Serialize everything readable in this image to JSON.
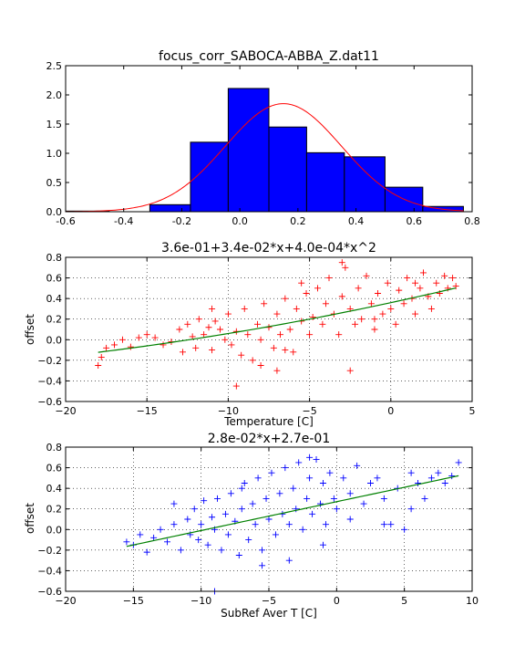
{
  "chart_data": [
    {
      "type": "bar",
      "title": "focus_corr_SABOCA-ABBA_Z.dat11",
      "xlabel": "",
      "ylabel": "",
      "xlim": [
        -0.6,
        0.8
      ],
      "ylim": [
        0.0,
        2.5
      ],
      "xticks": [
        "-0.6",
        "-0.4",
        "-0.2",
        "0.0",
        "0.2",
        "0.4",
        "0.6",
        "0.8"
      ],
      "yticks": [
        "0.0",
        "0.5",
        "1.0",
        "1.5",
        "2.0",
        "2.5"
      ],
      "grid": false,
      "bar_color": "#0000ff",
      "bins": [
        {
          "x0": -0.6,
          "x1": -0.45,
          "value": 0.01
        },
        {
          "x0": -0.45,
          "x1": -0.31,
          "value": 0.0
        },
        {
          "x0": -0.31,
          "x1": -0.17,
          "value": 0.12
        },
        {
          "x0": -0.17,
          "x1": -0.04,
          "value": 1.19
        },
        {
          "x0": -0.04,
          "x1": 0.1,
          "value": 2.11
        },
        {
          "x0": 0.1,
          "x1": 0.23,
          "value": 1.45
        },
        {
          "x0": 0.23,
          "x1": 0.36,
          "value": 1.01
        },
        {
          "x0": 0.36,
          "x1": 0.5,
          "value": 0.94
        },
        {
          "x0": 0.5,
          "x1": 0.63,
          "value": 0.42
        },
        {
          "x0": 0.63,
          "x1": 0.77,
          "value": 0.09
        }
      ],
      "fit_curve": {
        "type": "gaussian",
        "amplitude": 1.85,
        "mean": 0.15,
        "sigma": 0.2,
        "color": "#ff0000"
      }
    },
    {
      "type": "scatter",
      "title": "3.6e-01+3.4e-02*x+4.0e-04*x^2",
      "xlabel": "Temperature [C]",
      "ylabel": "offset",
      "xlim": [
        -20,
        5
      ],
      "ylim": [
        -0.6,
        0.8
      ],
      "xticks": [
        "−20",
        "−15",
        "−10",
        "−5",
        "0",
        "5"
      ],
      "yticks": [
        "−0.6",
        "−0.4",
        "−0.2",
        "0.0",
        "0.2",
        "0.4",
        "0.6",
        "0.8"
      ],
      "grid": true,
      "marker": "+",
      "point_color": "#ff0000",
      "fit_color": "#008000",
      "fit": {
        "type": "polynomial",
        "coefficients": [
          0.36,
          0.034,
          0.0004
        ],
        "x_range": [
          -18,
          4
        ]
      },
      "points": [
        [
          -18.0,
          -0.25
        ],
        [
          -17.8,
          -0.17
        ],
        [
          -17.5,
          -0.08
        ],
        [
          -17.0,
          -0.05
        ],
        [
          -16.5,
          0.0
        ],
        [
          -16.0,
          -0.07
        ],
        [
          -15.5,
          0.02
        ],
        [
          -15.0,
          0.05
        ],
        [
          -14.5,
          0.02
        ],
        [
          -14.0,
          -0.05
        ],
        [
          -13.5,
          -0.02
        ],
        [
          -13.0,
          0.1
        ],
        [
          -12.8,
          -0.12
        ],
        [
          -12.5,
          0.15
        ],
        [
          -12.2,
          0.03
        ],
        [
          -12.0,
          -0.08
        ],
        [
          -11.8,
          0.2
        ],
        [
          -11.5,
          0.05
        ],
        [
          -11.2,
          0.12
        ],
        [
          -11.0,
          -0.1
        ],
        [
          -10.8,
          0.18
        ],
        [
          -10.5,
          0.1
        ],
        [
          -10.2,
          0.0
        ],
        [
          -10.0,
          0.25
        ],
        [
          -9.8,
          -0.05
        ],
        [
          -9.5,
          0.08
        ],
        [
          -9.2,
          -0.15
        ],
        [
          -9.0,
          0.3
        ],
        [
          -8.8,
          0.05
        ],
        [
          -8.5,
          -0.2
        ],
        [
          -8.2,
          0.15
        ],
        [
          -8.0,
          0.0
        ],
        [
          -7.8,
          0.35
        ],
        [
          -7.5,
          0.12
        ],
        [
          -7.2,
          -0.08
        ],
        [
          -7.0,
          0.25
        ],
        [
          -6.8,
          0.05
        ],
        [
          -6.5,
          0.4
        ],
        [
          -6.2,
          0.1
        ],
        [
          -6.0,
          -0.12
        ],
        [
          -5.8,
          0.3
        ],
        [
          -5.5,
          0.18
        ],
        [
          -5.2,
          0.45
        ],
        [
          -5.0,
          0.05
        ],
        [
          -4.8,
          0.22
        ],
        [
          -4.5,
          0.5
        ],
        [
          -4.2,
          0.15
        ],
        [
          -4.0,
          0.35
        ],
        [
          -3.8,
          0.6
        ],
        [
          -3.5,
          0.25
        ],
        [
          -3.2,
          0.05
        ],
        [
          -3.0,
          0.42
        ],
        [
          -2.8,
          0.7
        ],
        [
          -2.5,
          0.3
        ],
        [
          -2.2,
          0.15
        ],
        [
          -2.0,
          0.5
        ],
        [
          -1.8,
          0.2
        ],
        [
          -1.5,
          0.62
        ],
        [
          -1.2,
          0.35
        ],
        [
          -1.0,
          0.1
        ],
        [
          -0.8,
          0.45
        ],
        [
          -0.5,
          0.25
        ],
        [
          -0.2,
          0.55
        ],
        [
          0.0,
          0.3
        ],
        [
          0.3,
          0.15
        ],
        [
          0.5,
          0.48
        ],
        [
          0.8,
          0.35
        ],
        [
          1.0,
          0.6
        ],
        [
          1.3,
          0.4
        ],
        [
          1.5,
          0.25
        ],
        [
          1.8,
          0.5
        ],
        [
          2.0,
          0.65
        ],
        [
          2.3,
          0.42
        ],
        [
          2.5,
          0.3
        ],
        [
          2.8,
          0.55
        ],
        [
          3.0,
          0.45
        ],
        [
          3.3,
          0.62
        ],
        [
          3.5,
          0.5
        ],
        [
          3.8,
          0.6
        ],
        [
          4.0,
          0.52
        ],
        [
          -9.5,
          -0.45
        ],
        [
          -7.0,
          -0.3
        ],
        [
          -2.5,
          -0.3
        ],
        [
          -8.0,
          -0.25
        ],
        [
          -6.5,
          -0.1
        ],
        [
          -11.0,
          0.3
        ],
        [
          -5.5,
          0.55
        ],
        [
          -3.0,
          0.75
        ],
        [
          -1.0,
          0.2
        ],
        [
          1.5,
          0.55
        ]
      ]
    },
    {
      "type": "scatter",
      "title": "2.8e-02*x+2.7e-01",
      "xlabel": "SubRef Aver T [C]",
      "ylabel": "offset",
      "xlim": [
        -20,
        10
      ],
      "ylim": [
        -0.6,
        0.8
      ],
      "xticks": [
        "−20",
        "−15",
        "−10",
        "−5",
        "0",
        "5",
        "10"
      ],
      "yticks": [
        "−0.6",
        "−0.4",
        "−0.2",
        "0.0",
        "0.2",
        "0.4",
        "0.6",
        "0.8"
      ],
      "grid": true,
      "marker": "+",
      "point_color": "#0000ff",
      "fit_color": "#008000",
      "fit": {
        "type": "polynomial",
        "coefficients": [
          0.27,
          0.028
        ],
        "x_range": [
          -15.5,
          9
        ]
      },
      "points": [
        [
          -15.5,
          -0.12
        ],
        [
          -15.0,
          -0.15
        ],
        [
          -14.5,
          -0.05
        ],
        [
          -14.0,
          -0.22
        ],
        [
          -13.5,
          -0.08
        ],
        [
          -13.0,
          0.0
        ],
        [
          -12.5,
          -0.12
        ],
        [
          -12.0,
          0.05
        ],
        [
          -11.5,
          -0.2
        ],
        [
          -11.0,
          0.1
        ],
        [
          -10.8,
          -0.05
        ],
        [
          -10.5,
          0.2
        ],
        [
          -10.2,
          -0.1
        ],
        [
          -10.0,
          0.05
        ],
        [
          -9.8,
          0.28
        ],
        [
          -9.5,
          -0.15
        ],
        [
          -9.2,
          0.12
        ],
        [
          -9.0,
          0.0
        ],
        [
          -8.8,
          0.3
        ],
        [
          -8.5,
          -0.2
        ],
        [
          -8.2,
          0.15
        ],
        [
          -8.0,
          -0.05
        ],
        [
          -7.8,
          0.35
        ],
        [
          -7.5,
          0.08
        ],
        [
          -7.2,
          -0.25
        ],
        [
          -7.0,
          0.2
        ],
        [
          -6.8,
          0.45
        ],
        [
          -6.5,
          -0.1
        ],
        [
          -6.2,
          0.25
        ],
        [
          -6.0,
          0.05
        ],
        [
          -5.8,
          0.5
        ],
        [
          -5.5,
          -0.2
        ],
        [
          -5.2,
          0.3
        ],
        [
          -5.0,
          0.1
        ],
        [
          -4.8,
          0.55
        ],
        [
          -4.5,
          -0.05
        ],
        [
          -4.2,
          0.35
        ],
        [
          -4.0,
          0.15
        ],
        [
          -3.8,
          0.6
        ],
        [
          -3.5,
          0.05
        ],
        [
          -3.2,
          0.4
        ],
        [
          -3.0,
          0.2
        ],
        [
          -2.8,
          0.65
        ],
        [
          -2.5,
          0.0
        ],
        [
          -2.2,
          0.3
        ],
        [
          -2.0,
          0.5
        ],
        [
          -1.8,
          0.15
        ],
        [
          -1.5,
          0.68
        ],
        [
          -1.2,
          0.25
        ],
        [
          -1.0,
          0.45
        ],
        [
          -0.8,
          0.05
        ],
        [
          -0.5,
          0.55
        ],
        [
          -0.2,
          0.3
        ],
        [
          0.0,
          0.2
        ],
        [
          0.5,
          0.5
        ],
        [
          1.0,
          0.35
        ],
        [
          1.5,
          0.62
        ],
        [
          2.0,
          0.25
        ],
        [
          2.5,
          0.45
        ],
        [
          3.0,
          0.5
        ],
        [
          3.5,
          0.3
        ],
        [
          4.0,
          0.05
        ],
        [
          4.5,
          0.4
        ],
        [
          5.0,
          0.0
        ],
        [
          5.5,
          0.55
        ],
        [
          6.0,
          0.45
        ],
        [
          6.5,
          0.3
        ],
        [
          7.0,
          0.5
        ],
        [
          7.5,
          0.55
        ],
        [
          8.0,
          0.45
        ],
        [
          8.5,
          0.52
        ],
        [
          9.0,
          0.65
        ],
        [
          -9.0,
          -0.6
        ],
        [
          -5.5,
          -0.35
        ],
        [
          -3.5,
          -0.3
        ],
        [
          -1.0,
          -0.15
        ],
        [
          3.5,
          0.05
        ],
        [
          -12.0,
          0.25
        ],
        [
          -7.0,
          0.4
        ],
        [
          -2.0,
          0.7
        ],
        [
          1.0,
          0.1
        ],
        [
          5.5,
          0.2
        ]
      ]
    }
  ]
}
